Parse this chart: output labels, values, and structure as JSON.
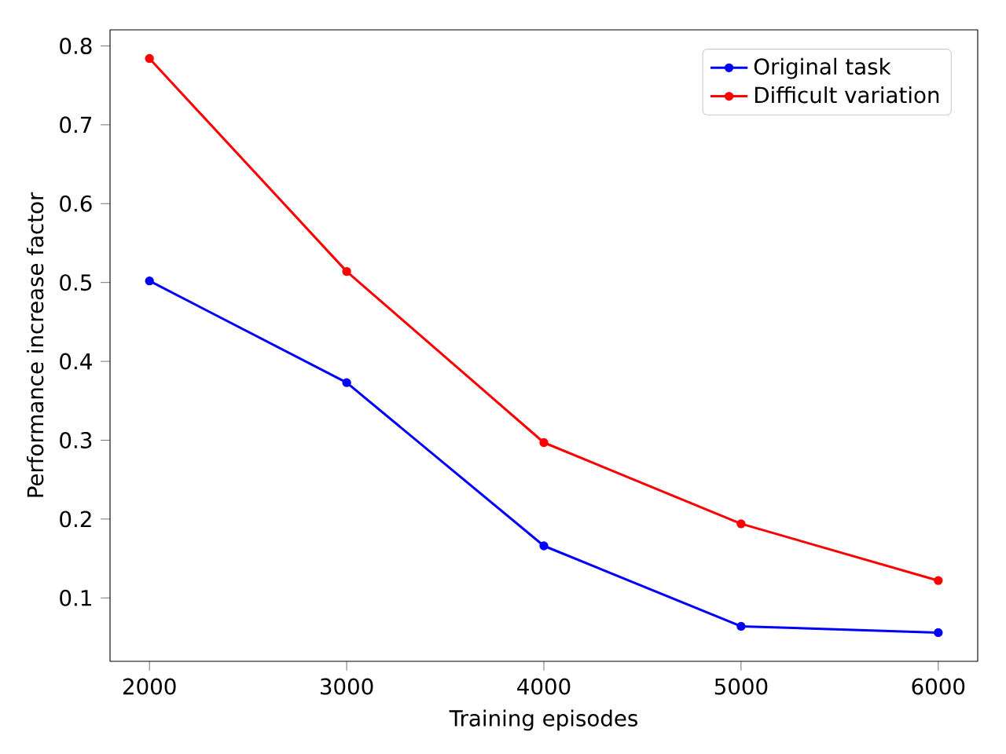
{
  "chart_data": {
    "type": "line",
    "xlabel": "Training episodes",
    "ylabel": "Performance increase factor",
    "x": [
      2000,
      3000,
      4000,
      5000,
      6000
    ],
    "series": [
      {
        "name": "Original task",
        "color": "#0000ff",
        "values": [
          0.502,
          0.373,
          0.166,
          0.064,
          0.056
        ]
      },
      {
        "name": "Difficult variation",
        "color": "#ff0000",
        "values": [
          0.784,
          0.514,
          0.297,
          0.194,
          0.122
        ]
      }
    ],
    "xlim": [
      1800,
      6200
    ],
    "ylim": [
      0.0196,
      0.8204
    ],
    "xticks": [
      2000,
      3000,
      4000,
      5000,
      6000
    ],
    "yticks": [
      0.1,
      0.2,
      0.3,
      0.4,
      0.5,
      0.6,
      0.7,
      0.8
    ],
    "legend": "top right",
    "marker": "circle",
    "line_style": "solid",
    "grid": false
  }
}
